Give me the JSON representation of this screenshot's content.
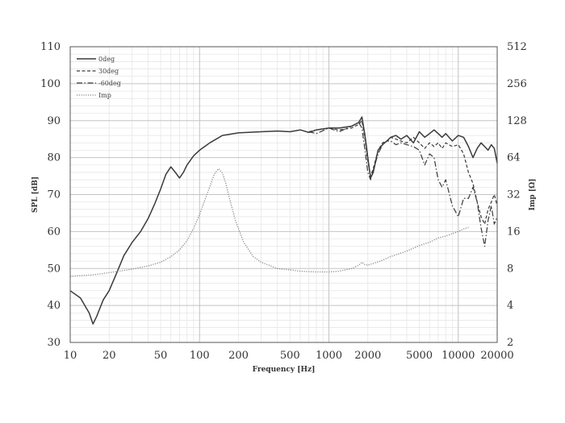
{
  "chart_data": {
    "type": "line",
    "xlabel": "Frequency [Hz]",
    "ylabel": "SPL [dB]",
    "y2label": "Imp [Ω]",
    "xscale": "log",
    "xlim": [
      10,
      20000
    ],
    "ylim": [
      30,
      110
    ],
    "y2scale": "log2",
    "y2lim": [
      2,
      512
    ],
    "grid": true,
    "legend_position": "top-left",
    "x_ticks": [
      10,
      20,
      50,
      100,
      200,
      500,
      1000,
      2000,
      5000,
      10000,
      20000
    ],
    "x_tick_labels": [
      "10",
      "20",
      "50",
      "100",
      "200",
      "500",
      "1000",
      "2000",
      "5000",
      "10000",
      "20000"
    ],
    "y_ticks": [
      30,
      40,
      50,
      60,
      70,
      80,
      90,
      100,
      110
    ],
    "y_tick_labels": [
      "30",
      "40",
      "50",
      "60",
      "70",
      "80",
      "90",
      "100",
      "110"
    ],
    "y2_ticks": [
      2,
      4,
      8,
      16,
      32,
      64,
      128,
      256,
      512
    ],
    "y2_tick_labels": [
      "2",
      "4",
      "8",
      "16",
      "32",
      "64",
      "128",
      "256",
      "512"
    ],
    "series": [
      {
        "name": "0deg",
        "style": "solid",
        "axis": "left",
        "x": [
          10,
          12,
          14,
          15,
          16,
          18,
          20,
          23,
          26,
          30,
          35,
          40,
          45,
          50,
          55,
          60,
          65,
          70,
          75,
          80,
          90,
          100,
          120,
          150,
          200,
          300,
          400,
          500,
          600,
          700,
          800,
          1000,
          1200,
          1500,
          1700,
          1800,
          1900,
          2000,
          2100,
          2200,
          2400,
          2600,
          2800,
          3000,
          3300,
          3600,
          4000,
          4500,
          5000,
          5500,
          6000,
          6500,
          7000,
          7500,
          8000,
          9000,
          10000,
          11000,
          12000,
          13000,
          14000,
          15000,
          16000,
          17000,
          18000,
          19000,
          20000
        ],
        "y": [
          44,
          42,
          38,
          35,
          37,
          41.5,
          44,
          49,
          53.5,
          57,
          60,
          63.5,
          67.5,
          71.5,
          75.5,
          77.5,
          76,
          74.5,
          76,
          78,
          80.5,
          82,
          84,
          86,
          86.7,
          87,
          87.2,
          87,
          87.5,
          86.8,
          87.5,
          88,
          88,
          88.5,
          89.5,
          91,
          86,
          80,
          74.5,
          76,
          82,
          83.5,
          84.5,
          85.5,
          86,
          85,
          86,
          84,
          87,
          85.5,
          86.5,
          87.5,
          86.5,
          85.5,
          86.5,
          84.5,
          86,
          85.5,
          83,
          80,
          82.5,
          84,
          83,
          82,
          83.5,
          82.5,
          78.5
        ]
      },
      {
        "name": "30deg",
        "style": "dashed",
        "axis": "left",
        "x": [
          700,
          800,
          1000,
          1200,
          1500,
          1700,
          1800,
          1900,
          2000,
          2100,
          2200,
          2400,
          2600,
          2800,
          3000,
          3300,
          3600,
          4000,
          4500,
          5000,
          5500,
          6000,
          6500,
          7000,
          7500,
          8000,
          9000,
          10000,
          11000,
          12000,
          13000,
          14000,
          15000,
          16000,
          17000,
          18000,
          19000,
          20000
        ],
        "y": [
          87,
          87.5,
          88,
          87.5,
          88,
          89,
          90,
          85,
          79,
          75,
          77,
          82,
          84,
          84.5,
          85.5,
          85,
          84.5,
          84,
          85.5,
          84,
          82.5,
          84,
          83,
          84,
          82.5,
          84,
          83,
          83.5,
          81,
          76,
          73,
          68,
          64,
          62,
          66,
          68,
          70,
          67
        ]
      },
      {
        "name": "-60deg",
        "style": "dashdot",
        "axis": "left",
        "x": [
          700,
          800,
          1000,
          1200,
          1500,
          1700,
          1800,
          1900,
          2000,
          2100,
          2200,
          2400,
          2600,
          2800,
          3000,
          3300,
          3600,
          4000,
          4500,
          5000,
          5500,
          6000,
          6500,
          7000,
          7500,
          8000,
          9000,
          10000,
          11000,
          12000,
          13000,
          14000,
          15000,
          16000,
          17000,
          18000,
          19000,
          20000
        ],
        "y": [
          87,
          86.5,
          88,
          87,
          88.5,
          89.5,
          88,
          82,
          76,
          74,
          76.5,
          81,
          83.5,
          84.5,
          84.5,
          83.5,
          84,
          83.5,
          83,
          82,
          78,
          81,
          80,
          74,
          72,
          74,
          67,
          64,
          69,
          69,
          72,
          68,
          61,
          56,
          63,
          67,
          62,
          64
        ]
      },
      {
        "name": "Imp",
        "style": "dotted",
        "axis": "right",
        "x": [
          10,
          15,
          20,
          30,
          40,
          50,
          60,
          70,
          80,
          90,
          100,
          110,
          120,
          130,
          140,
          150,
          160,
          170,
          190,
          220,
          260,
          300,
          400,
          500,
          600,
          800,
          1000,
          1200,
          1500,
          1700,
          1800,
          1900,
          2000,
          2500,
          3000,
          4000,
          5000,
          6000,
          7000,
          8000,
          9000,
          10000,
          11000,
          12000
        ],
        "y": [
          6.9,
          7.1,
          7.4,
          7.9,
          8.4,
          9,
          10,
          11.3,
          13.5,
          17,
          22,
          29,
          37,
          47,
          52,
          48,
          39,
          30,
          19.5,
          13,
          10,
          9,
          8,
          7.8,
          7.6,
          7.5,
          7.5,
          7.6,
          8,
          8.5,
          9,
          8.6,
          8.5,
          9.2,
          10,
          11.1,
          12.3,
          13.1,
          14.2,
          14.7,
          15.4,
          16,
          16.8,
          17.3
        ]
      }
    ]
  }
}
